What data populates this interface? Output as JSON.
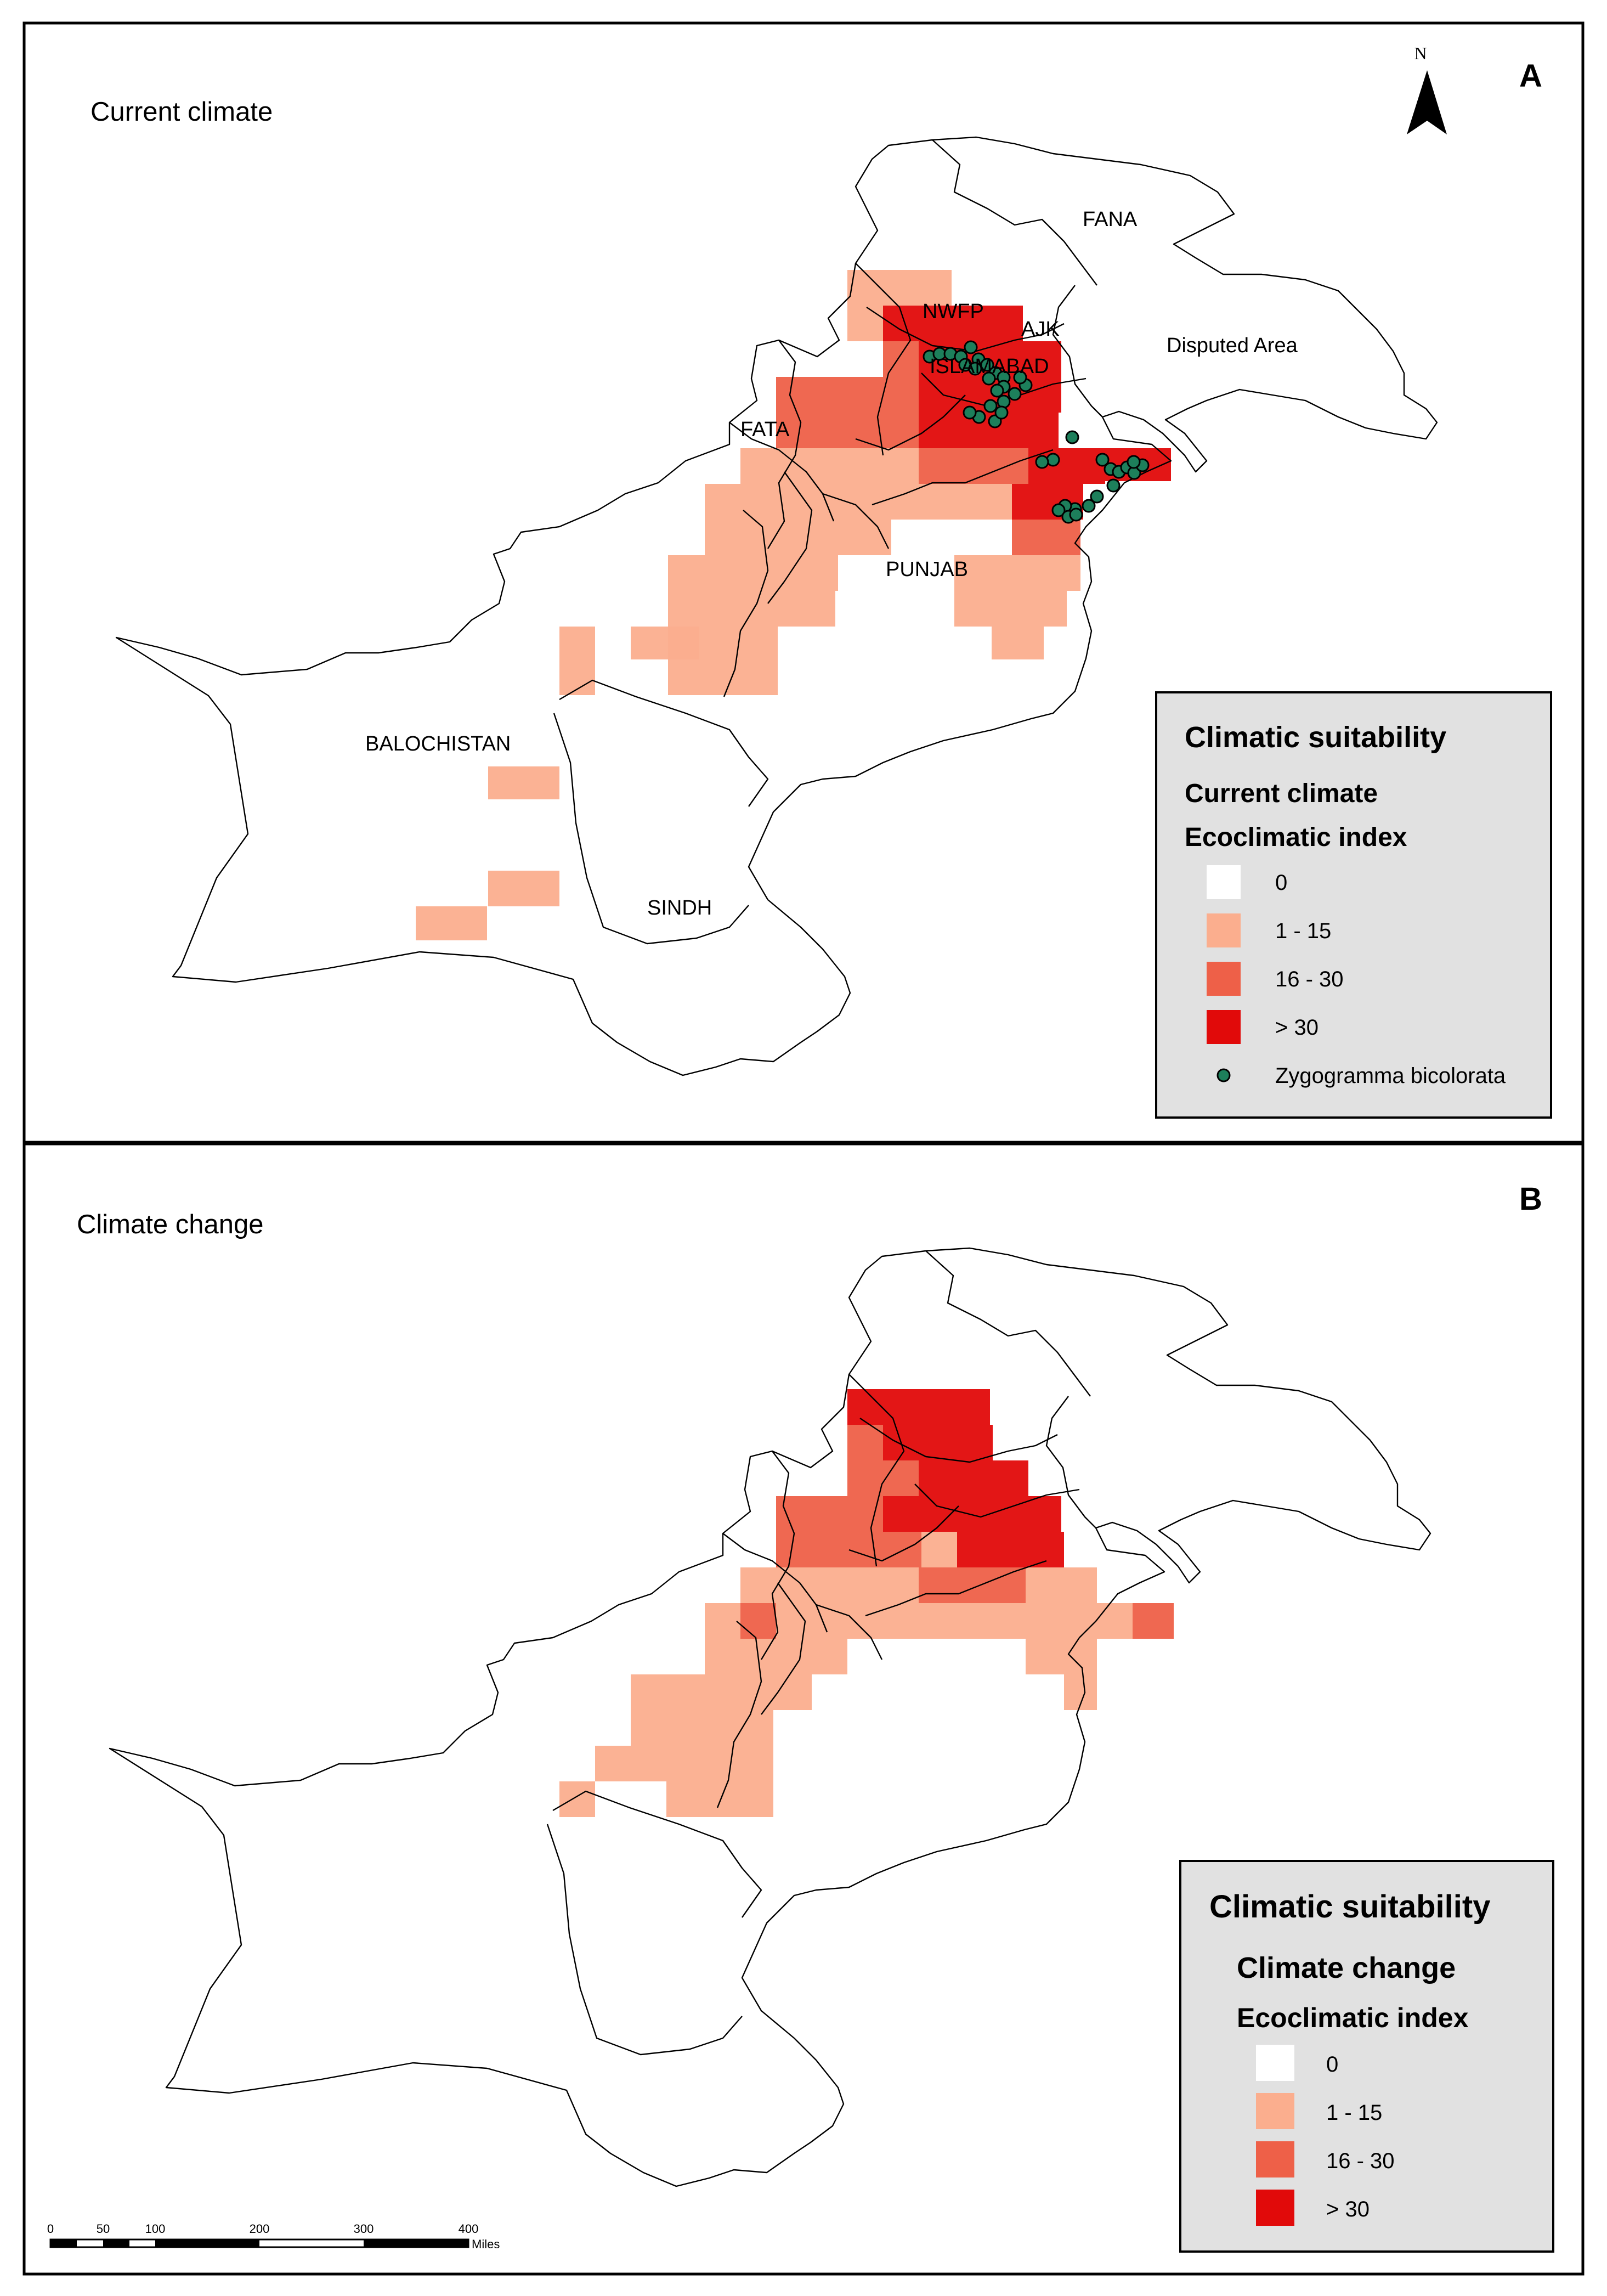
{
  "colors": {
    "ei_0": "#ffffff",
    "ei_1_15": "#fbae8e",
    "ei_16_30": "#ee6048",
    "ei_gt_30": "#e10a0a",
    "occurrence": "#1d7f5b",
    "legend_bg": "#e1e1e1"
  },
  "north_arrow": {
    "label": "N",
    "icon": "north-arrow-icon"
  },
  "panels": [
    {
      "letter": "A",
      "title": "Current climate",
      "region_labels": [
        "FANA",
        "NWFP",
        "AJK",
        "Disputed Area",
        "ISLAMABAD",
        "FATA",
        "PUNJAB",
        "BALOCHISTAN",
        "SINDH"
      ],
      "legend": {
        "title": "Climatic suitability",
        "subtitle": "Current climate",
        "index_title": "Ecoclimatic index",
        "items": [
          {
            "label": "0",
            "color": "#ffffff"
          },
          {
            "label": "1 - 15",
            "color": "#fbae8e"
          },
          {
            "label": "16 - 30",
            "color": "#ee6048"
          },
          {
            "label": "> 30",
            "color": "#e10a0a"
          }
        ],
        "occurrence_label": "Zygogramma bicolorata"
      }
    },
    {
      "letter": "B",
      "title": "Climate change",
      "region_labels": [],
      "legend": {
        "title": "Climatic suitability",
        "subtitle": "Climate change",
        "index_title": "Ecoclimatic index",
        "items": [
          {
            "label": "0",
            "color": "#ffffff"
          },
          {
            "label": "1 - 15",
            "color": "#fbae8e"
          },
          {
            "label": "16 - 30",
            "color": "#ee6048"
          },
          {
            "label": "> 30",
            "color": "#e10a0a"
          }
        ]
      }
    }
  ],
  "scale_bar": {
    "ticks": [
      "0",
      "50",
      "100",
      "200",
      "300",
      "400"
    ],
    "unit": "Miles"
  }
}
